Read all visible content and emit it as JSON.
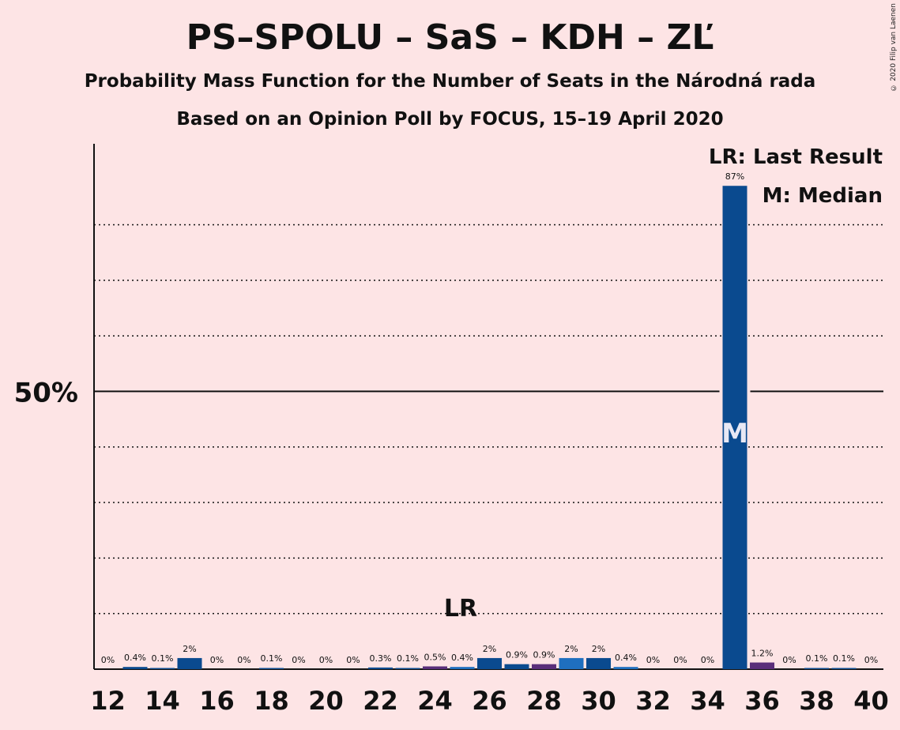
{
  "title": "PS–SPOLU – SaS – KDH – ZĽ",
  "subtitle1": "Probability Mass Function for the Number of Seats in the Národná rada",
  "subtitle2": "Based on an Opinion Poll by FOCUS, 15–19 April 2020",
  "credit": "© 2020 Filip van Laenen",
  "legend": {
    "lr": "LR: Last Result",
    "m": "M: Median"
  },
  "colors": {
    "background": "#fde4e5",
    "bar_main": "#0a4a8f",
    "bar_alt": "#1f6fbf",
    "bar_purple": "#5a2e7a"
  },
  "chart_data": {
    "type": "bar",
    "xlabel": "",
    "ylabel": "",
    "ylim": [
      0,
      94
    ],
    "gridlines_dotted": [
      10,
      20,
      30,
      40,
      60,
      70,
      80
    ],
    "gridline_solid": 50,
    "y_tick_label": "50%",
    "x_ticks": [
      "12",
      "14",
      "16",
      "18",
      "20",
      "22",
      "24",
      "26",
      "28",
      "30",
      "32",
      "34",
      "36",
      "38",
      "40"
    ],
    "categories": [
      12,
      13,
      14,
      15,
      16,
      17,
      18,
      19,
      20,
      21,
      22,
      23,
      24,
      25,
      26,
      27,
      28,
      29,
      30,
      31,
      32,
      33,
      34,
      35,
      36,
      37,
      38,
      39,
      40
    ],
    "values": [
      0,
      0.4,
      0.1,
      2,
      0,
      0,
      0.1,
      0,
      0,
      0,
      0.3,
      0.1,
      0.5,
      0.4,
      2,
      0.9,
      0.9,
      2,
      2,
      0.4,
      0,
      0,
      0,
      87,
      1.2,
      0,
      0.1,
      0.1,
      0
    ],
    "labels": [
      "0%",
      "0.4%",
      "0.1%",
      "2%",
      "0%",
      "0%",
      "0.1%",
      "0%",
      "0%",
      "0%",
      "0.3%",
      "0.1%",
      "0.5%",
      "0.4%",
      "2%",
      "0.9%",
      "0.9%",
      "2%",
      "2%",
      "0.4%",
      "0%",
      "0%",
      "0%",
      "87%",
      "1.2%",
      "0%",
      "0.1%",
      "0.1%",
      "0%"
    ],
    "last_result_seat": 25,
    "last_result_label": "LR",
    "median_seat": 35,
    "median_label": "M"
  }
}
